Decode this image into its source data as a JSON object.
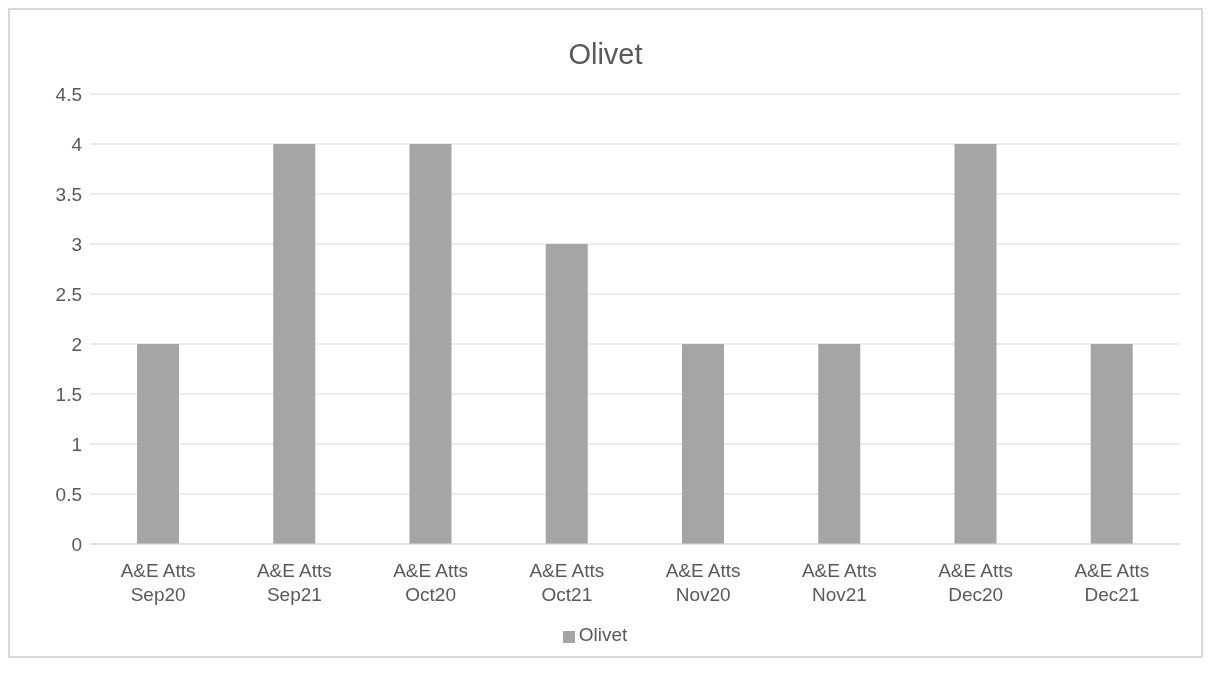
{
  "chart_data": {
    "type": "bar",
    "title": "Olivet",
    "categories": [
      "A&E Atts Sep20",
      "A&E Atts Sep21",
      "A&E Atts Oct20",
      "A&E Atts Oct21",
      "A&E Atts Nov20",
      "A&E Atts Nov21",
      "A&E Atts Dec20",
      "A&E Atts Dec21"
    ],
    "series": [
      {
        "name": "Olivet",
        "color": "#a5a5a5",
        "values": [
          2,
          4,
          4,
          3,
          2,
          2,
          4,
          2
        ]
      }
    ],
    "ylim": [
      0,
      4.5
    ],
    "yticks": [
      0,
      0.5,
      1,
      1.5,
      2,
      2.5,
      3,
      3.5,
      4,
      4.5
    ],
    "grid": "y",
    "legend": "bottom"
  }
}
